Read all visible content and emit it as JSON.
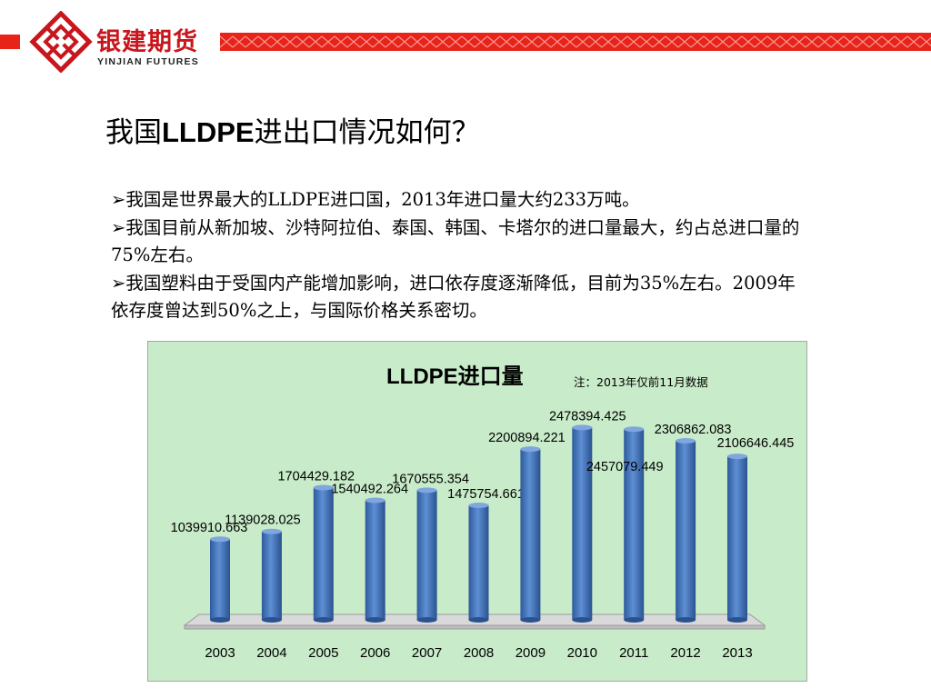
{
  "header": {
    "brand_cn": "银建期货",
    "brand_en": "YINJIAN FUTURES",
    "accent_color": "#e8231a"
  },
  "slide": {
    "title_pre": "我国",
    "title_bold": "LLDPE",
    "title_post": "进出口情况如何？"
  },
  "bullets": [
    {
      "marker": "➢",
      "text": "我国是世界最大的LLDPE进口国，2013年进口量大约233万吨。"
    },
    {
      "marker": "➢",
      "text": "我国目前从新加坡、沙特阿拉伯、泰国、韩国、卡塔尔的进口量最大，约占总进口量的 75%左右。"
    },
    {
      "marker": "➢",
      "text": "我国塑料由于受国内产能增加影响，进口依存度逐渐降低，目前为35%左右。2009年依存度曾达到50%之上，与国际价格关系密切。"
    }
  ],
  "chart_data": {
    "type": "bar",
    "title": "LLDPE进口量",
    "note": "注：2013年仅前11月数据",
    "categories": [
      "2003",
      "2004",
      "2005",
      "2006",
      "2007",
      "2008",
      "2009",
      "2010",
      "2011",
      "2012",
      "2013"
    ],
    "values": [
      1039910.663,
      1139028.025,
      1704429.182,
      1540492.264,
      1670555.354,
      1475754.661,
      2200894.221,
      2478394.425,
      2457079.449,
      2306862.083,
      2106646.445
    ],
    "data_labels": [
      "1039910.663",
      "1139028.025",
      "1704429.182",
      "1540492.264",
      "1670555.354",
      "1475754.661",
      "2200894.221",
      "2478394.425",
      "2457079.449",
      "2306862.083",
      "2106646.445"
    ],
    "ylim": [
      0,
      2600000
    ],
    "xlabel": "",
    "ylabel": "",
    "grid": false,
    "legend": "none",
    "bar_color": "#4a7ac0",
    "background_color": "#c8ebc9"
  }
}
